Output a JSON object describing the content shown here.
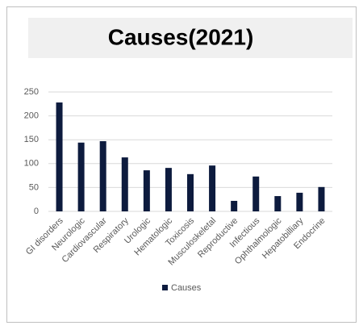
{
  "chart_data": {
    "type": "bar",
    "title": "Causes(2021)",
    "categories": [
      "GI disorders",
      "Neurologic",
      "Cardiovascular",
      "Respiratory",
      "Urologic",
      "Hematologic",
      "Toxicosis",
      "Musculoskeletal",
      "Reproductive",
      "Infectious",
      "Ophthalmologic",
      "Hepatobilliary",
      "Endocrine"
    ],
    "series": [
      {
        "name": "Causes",
        "color": "#0d1b3e",
        "values": [
          228,
          144,
          147,
          113,
          86,
          91,
          78,
          96,
          22,
          73,
          32,
          39,
          51
        ]
      }
    ],
    "ylim": [
      0,
      250
    ],
    "yticks": [
      0,
      50,
      100,
      150,
      200,
      250
    ],
    "grid": true,
    "legend": "bottom"
  }
}
